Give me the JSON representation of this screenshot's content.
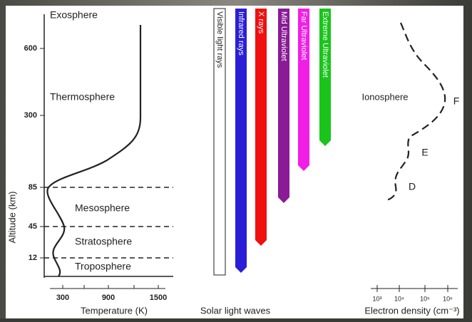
{
  "atmosphere": {
    "layers": [
      "Exosphere",
      "Thermosphere",
      "Mesosphere",
      "Stratosphere",
      "Troposphere"
    ],
    "altitude_axis": {
      "label": "Altitude (km)",
      "ticks": [
        "600",
        "300",
        "85",
        "45",
        "12"
      ]
    },
    "temperature_axis": {
      "label": "Temperature (K)",
      "ticks": [
        "300",
        "900",
        "1500"
      ]
    }
  },
  "solar": {
    "label": "Solar light waves",
    "bars": [
      {
        "name": "Visible light rays",
        "color": "#ffffff"
      },
      {
        "name": "Infrared rays",
        "color": "#2a1fd6"
      },
      {
        "name": "X rays",
        "color": "#f01010"
      },
      {
        "name": "Mid Ultraviolet",
        "color": "#8a1a96"
      },
      {
        "name": "Far Ultraviolet",
        "color": "#f21ee6"
      },
      {
        "name": "Extreme Ultraviolet",
        "color": "#19c41b"
      }
    ]
  },
  "ionosphere": {
    "label": "Ionosphere",
    "regions": [
      "F",
      "E",
      "D"
    ],
    "density_axis": {
      "label": "Electron density (cm⁻³)",
      "ticks": [
        "10³",
        "10⁴",
        "10⁵",
        "10⁶"
      ]
    }
  }
}
